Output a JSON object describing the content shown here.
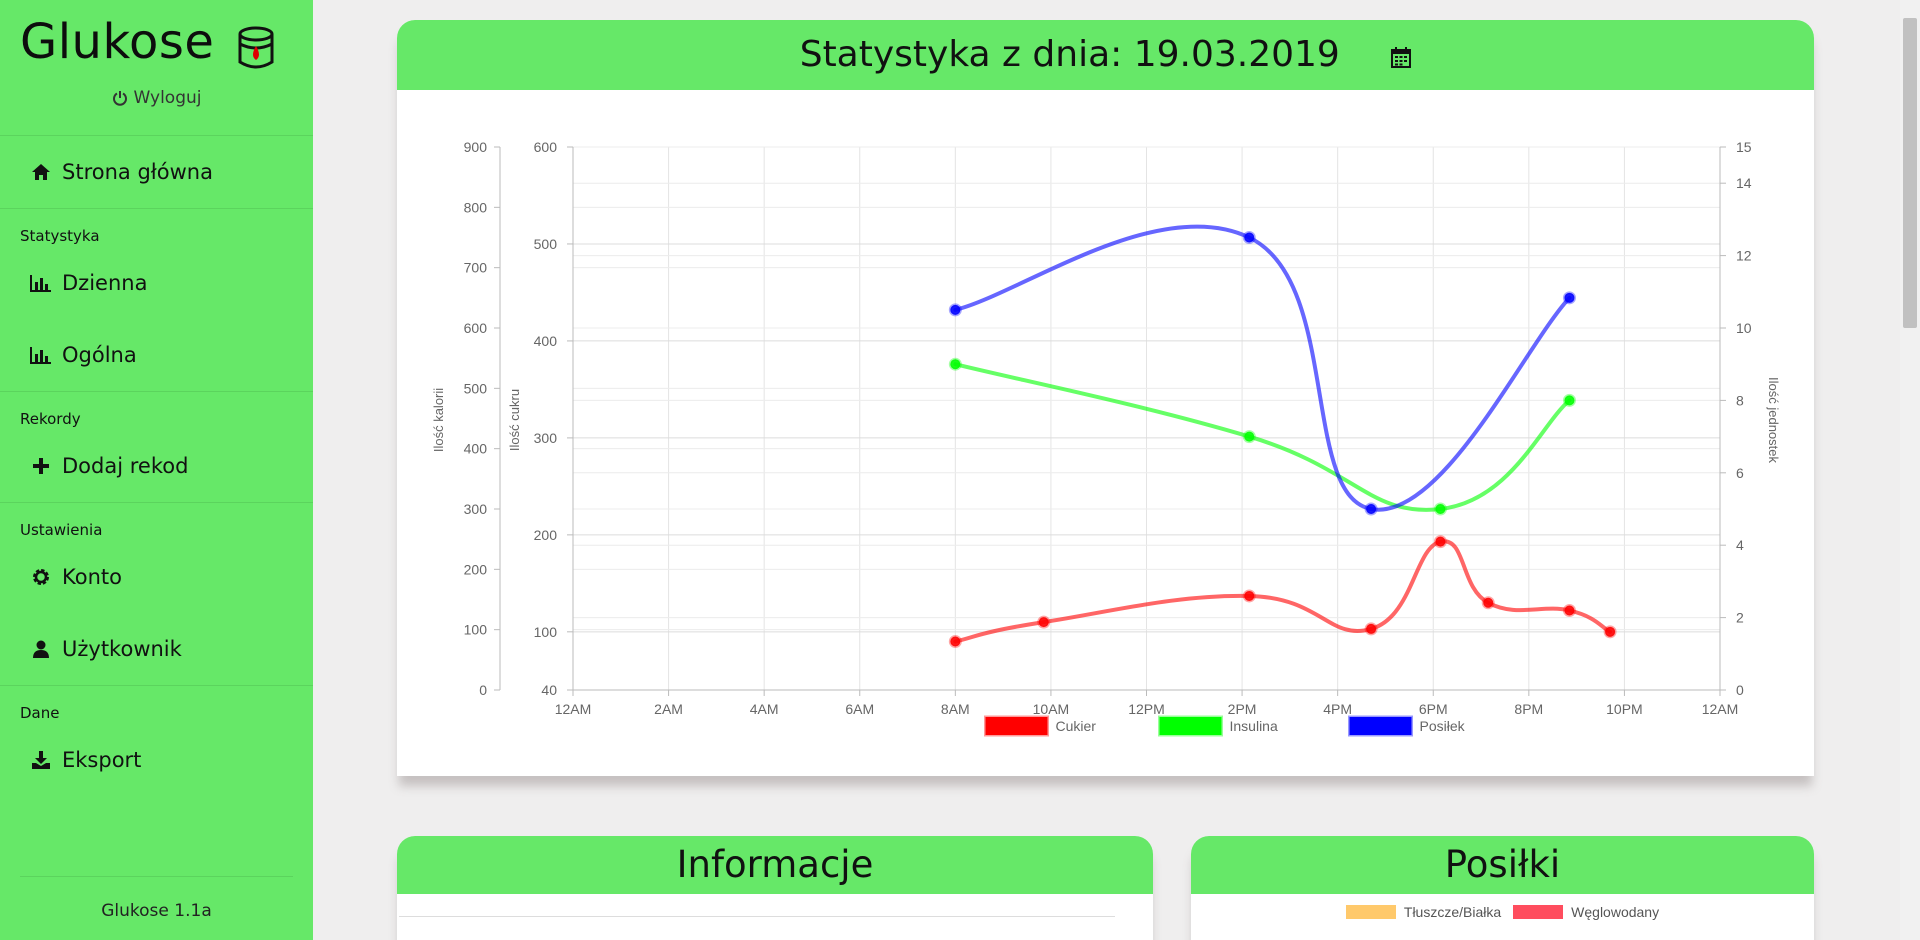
{
  "sidebar": {
    "brand": "Glukose",
    "logout": "Wyloguj",
    "home": "Strona główna",
    "section_stats": "Statystyka",
    "daily": "Dzienna",
    "general": "Ogólna",
    "section_records": "Rekordy",
    "add_record": "Dodaj rekod",
    "section_settings": "Ustawienia",
    "account": "Konto",
    "user": "Użytkownik",
    "section_data": "Dane",
    "export": "Eksport",
    "version": "Glukose 1.1a"
  },
  "stats": {
    "title": "Statystyka z dnia: 19.03.2019"
  },
  "info": {
    "title": "Informacje"
  },
  "meals": {
    "title": "Posiłki",
    "legend": [
      {
        "label": "Tłuszcze/Białka",
        "color": "#ffc96b"
      },
      {
        "label": "Węglowodany",
        "color": "#ff4d5e"
      }
    ]
  },
  "chart_data": {
    "type": "line",
    "x_ticks": [
      "12AM",
      "2AM",
      "4AM",
      "6AM",
      "8AM",
      "10AM",
      "12PM",
      "2PM",
      "4PM",
      "6PM",
      "8PM",
      "10PM",
      "12AM"
    ],
    "axes": {
      "kalorii": {
        "label": "Ilość kalorii",
        "ticks": [
          0,
          100,
          200,
          300,
          400,
          500,
          600,
          700,
          800,
          900
        ],
        "range": [
          0,
          900
        ]
      },
      "cukru": {
        "label": "Ilość cukru",
        "ticks": [
          40,
          100,
          200,
          300,
          400,
          500,
          600
        ],
        "range": [
          40,
          600
        ]
      },
      "jednostek": {
        "label": "Ilość jednostek",
        "ticks": [
          0,
          2,
          4,
          6,
          8,
          10,
          12,
          14,
          15
        ],
        "range": [
          0,
          15
        ]
      }
    },
    "series": [
      {
        "name": "Cukier",
        "color": "#ff0000",
        "axis": "cukru",
        "x": [
          8.0,
          9.85,
          14.15,
          16.7,
          18.15,
          19.15,
          20.85,
          21.7
        ],
        "y": [
          90,
          110,
          137,
          103,
          193,
          130,
          122,
          100
        ]
      },
      {
        "name": "Insulina",
        "color": "#00ff00",
        "axis": "jednostek",
        "x": [
          8.0,
          14.15,
          18.15,
          20.85
        ],
        "y": [
          9,
          7,
          5,
          8
        ]
      },
      {
        "name": "Posiłek",
        "color": "#0000ff",
        "axis": "kalorii",
        "x": [
          8.0,
          14.15,
          16.7,
          20.85
        ],
        "y": [
          630,
          750,
          300,
          650
        ]
      }
    ],
    "legend_position": "bottom",
    "grid": true
  }
}
